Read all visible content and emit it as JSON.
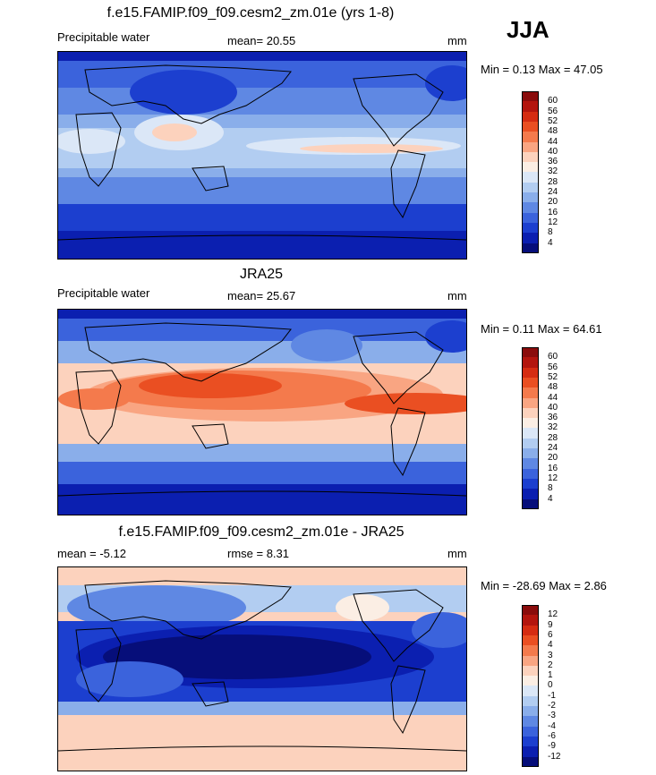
{
  "season": "JJA",
  "panels": [
    {
      "title": "f.e15.FAMIP.f09_f09.cesm2_zm.01e (yrs 1-8)",
      "left_label": "Precipitable water",
      "center_label": "mean=  20.55",
      "right_label": "mm",
      "minmax": "Min =  0.13 Max =  47.05",
      "palette": "abs",
      "colorbar_ticks": [
        "60",
        "56",
        "52",
        "48",
        "44",
        "40",
        "36",
        "32",
        "28",
        "24",
        "20",
        "16",
        "12",
        "8",
        "4"
      ],
      "colorbar_colors": [
        "#8a0c0c",
        "#b3150e",
        "#d52c12",
        "#ea4f22",
        "#f47a4c",
        "#f9a582",
        "#fcd2bd",
        "#fbeee4",
        "#dbe7f7",
        "#b2cdf1",
        "#8aaeea",
        "#5f88e3",
        "#3b63dc",
        "#1c3fcf",
        "#0b1fb0",
        "#060e7a"
      ]
    },
    {
      "title": "JRA25",
      "left_label": "Precipitable water",
      "center_label": "mean=  25.67",
      "right_label": "mm",
      "minmax": "Min =  0.11 Max =  64.61",
      "palette": "abs",
      "colorbar_ticks": [
        "60",
        "56",
        "52",
        "48",
        "44",
        "40",
        "36",
        "32",
        "28",
        "24",
        "20",
        "16",
        "12",
        "8",
        "4"
      ],
      "colorbar_colors": [
        "#8a0c0c",
        "#b3150e",
        "#d52c12",
        "#ea4f22",
        "#f47a4c",
        "#f9a582",
        "#fcd2bd",
        "#fbeee4",
        "#dbe7f7",
        "#b2cdf1",
        "#8aaeea",
        "#5f88e3",
        "#3b63dc",
        "#1c3fcf",
        "#0b1fb0",
        "#060e7a"
      ]
    },
    {
      "title": "f.e15.FAMIP.f09_f09.cesm2_zm.01e - JRA25",
      "left_label": "mean =  -5.12",
      "center_label": "rmse =   8.31",
      "right_label": "mm",
      "minmax": "Min = -28.69 Max =   2.86",
      "palette": "diff",
      "colorbar_ticks": [
        "12",
        "9",
        "6",
        "4",
        "3",
        "2",
        "1",
        "0",
        "-1",
        "-2",
        "-3",
        "-4",
        "-6",
        "-9",
        "-12"
      ],
      "colorbar_colors": [
        "#8a0c0c",
        "#b3150e",
        "#d52c12",
        "#ea4f22",
        "#f47a4c",
        "#f9a582",
        "#fcd2bd",
        "#fbeee4",
        "#dbe7f7",
        "#b2cdf1",
        "#8aaeea",
        "#5f88e3",
        "#3b63dc",
        "#1c3fcf",
        "#0b1fb0",
        "#060e7a"
      ]
    }
  ]
}
